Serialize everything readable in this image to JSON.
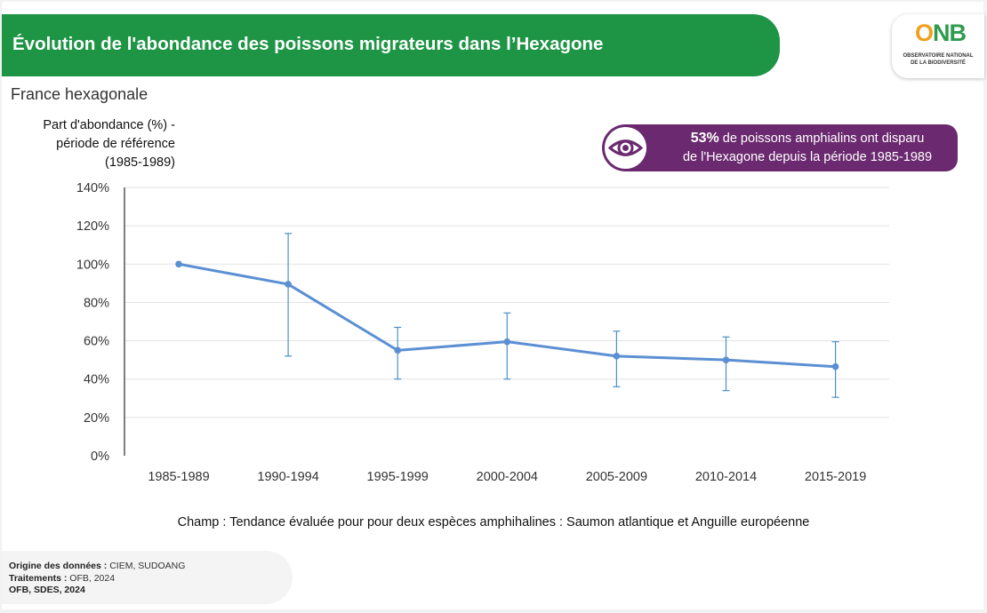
{
  "header": {
    "title": "Évolution de l'abondance des poissons migrateurs dans l’Hexagone",
    "subtitle": "France hexagonale"
  },
  "logo": {
    "mark_o": "O",
    "mark_nb": "NB",
    "line1": "OBSERVATOIRE NATIONAL",
    "line2": "DE LA BIODIVERSITÉ",
    "color_o": "#f0a020",
    "color_nb": "#2e9b4d"
  },
  "callout": {
    "icon": "eye-icon",
    "highlight": "53%",
    "text_after": " de poissons amphialins ont disparu",
    "line2": "de l'Hexagone depuis la période 1985-1989",
    "color": "#6b2a6f"
  },
  "chart_data": {
    "type": "line",
    "ylabel_lines": [
      "Part d'abondance (%) -",
      "période de référence",
      "(1985-1989)"
    ],
    "categories": [
      "1985-1989",
      "1990-1994",
      "1995-1999",
      "2000-2004",
      "2005-2009",
      "2010-2014",
      "2015-2019"
    ],
    "values": [
      100,
      89.5,
      55,
      59.5,
      52,
      50,
      46.5
    ],
    "error_low": [
      100,
      52,
      40,
      40,
      36,
      34,
      30.5
    ],
    "error_high": [
      100,
      116,
      67,
      74.5,
      65,
      62,
      59.5
    ],
    "ylim": [
      0,
      140
    ],
    "yticks": [
      0,
      20,
      40,
      60,
      80,
      100,
      120,
      140
    ],
    "ytick_labels": [
      "0%",
      "20%",
      "40%",
      "60%",
      "80%",
      "100%",
      "120%",
      "140%"
    ],
    "grid": true,
    "line_color": "#5b8fd3",
    "error_color": "#4a90c8"
  },
  "field_note": "Champ : Tendance évaluée pour pour deux espèces amphihalines : Saumon atlantique et Anguille européenne",
  "sources": {
    "origin_label": "Origine des données : ",
    "origin_value": "CIEM, SUDOANG",
    "treatment_label": "Traitements : ",
    "treatment_value": "OFB, 2024",
    "credit": "OFB, SDES, 2024"
  },
  "colors": {
    "title_bar": "#1e9445",
    "background": "#ffffff"
  }
}
